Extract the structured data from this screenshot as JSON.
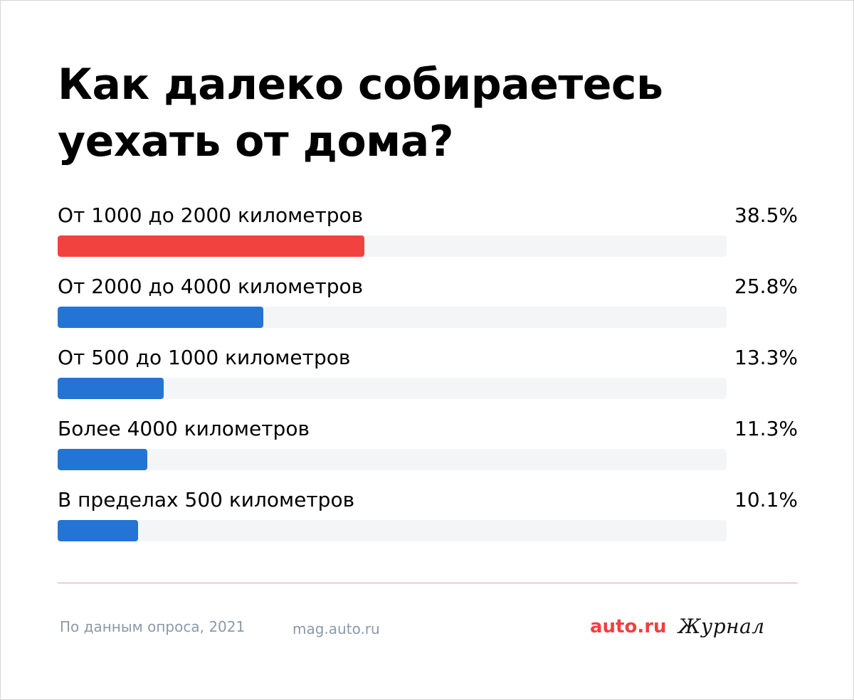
{
  "title": "Как далеко собираетесь уехать от дома?",
  "chart_data": {
    "type": "bar",
    "orientation": "horizontal",
    "categories": [
      "От 1000 до 2000 километров",
      "От 2000 до 4000 километров",
      "От 500 до 1000 километров",
      "Более 4000 километров",
      "В пределах 500 километров"
    ],
    "values": [
      38.5,
      25.8,
      13.3,
      11.3,
      10.1
    ],
    "value_labels": [
      "38.5%",
      "25.8%",
      "13.3%",
      "11.3%",
      "10.1%"
    ],
    "unit": "%",
    "xlim": [
      0,
      84
    ],
    "colors": [
      "#f24240",
      "#2374d4",
      "#2374d4",
      "#2374d4",
      "#2374d4"
    ],
    "track_color": "#f4f5f6",
    "grid": false,
    "legend": "none"
  },
  "footer": {
    "source": "По данным опроса, 2021",
    "site": "mag.auto.ru",
    "logo": "auto.ru",
    "journal": "Журнал"
  }
}
